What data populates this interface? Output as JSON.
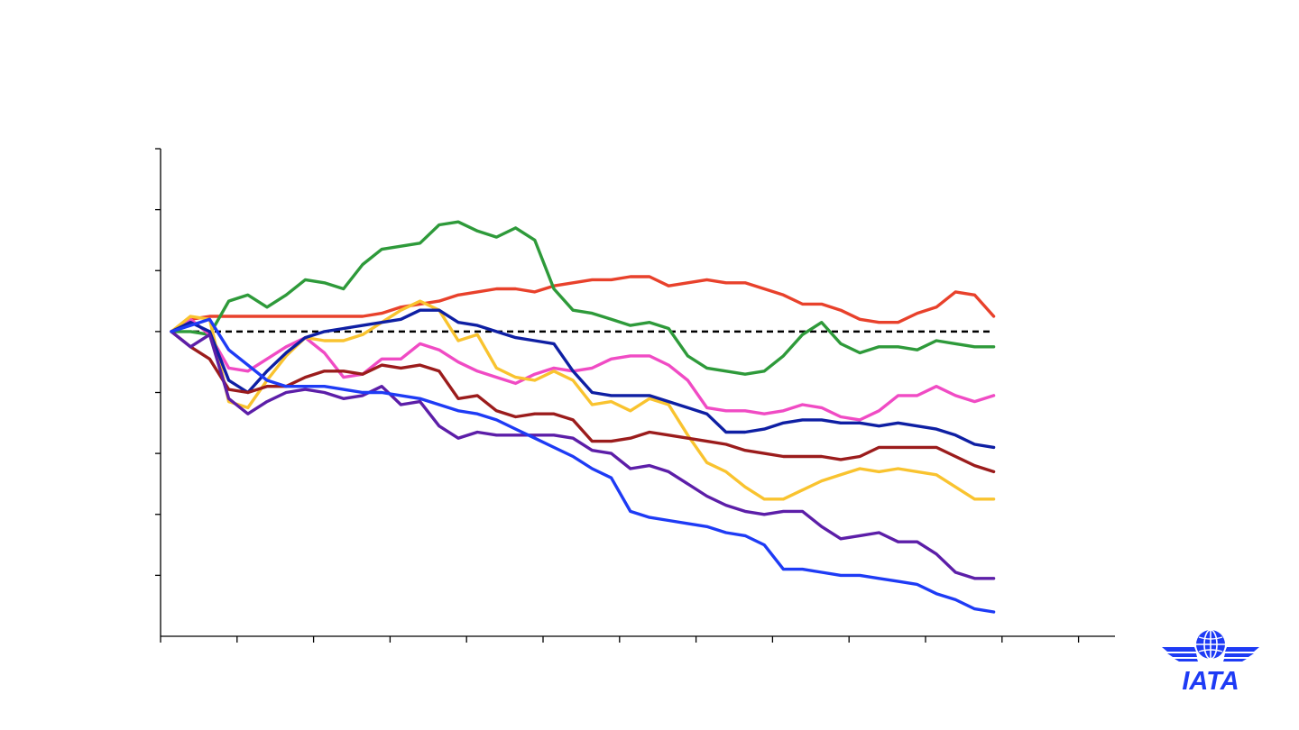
{
  "chart_data": {
    "type": "line",
    "title": "",
    "xlabel": "",
    "ylabel": "",
    "x_tick_count": 13,
    "y_tick_count": 8,
    "xlim": [
      0,
      50
    ],
    "ylim": [
      -100,
      60
    ],
    "reference_line": {
      "value": 0,
      "style": "dashed",
      "color": "#000000"
    },
    "grid": false,
    "legend": "none",
    "x": [
      0,
      1,
      2,
      3,
      4,
      5,
      6,
      7,
      8,
      9,
      10,
      11,
      12,
      13,
      14,
      15,
      16,
      17,
      18,
      19,
      20,
      21,
      22,
      23,
      24,
      25,
      26,
      27,
      28,
      29,
      30,
      31,
      32,
      33,
      34,
      35,
      36,
      37,
      38,
      39,
      40,
      41,
      42,
      43
    ],
    "series": [
      {
        "color": "#e8412b",
        "values": [
          0,
          4,
          5,
          5,
          5,
          5,
          5,
          5,
          5,
          5,
          5,
          6,
          8,
          9,
          10,
          12,
          13,
          14,
          14,
          13,
          15,
          16,
          17,
          17,
          18,
          18,
          15,
          16,
          17,
          16,
          16,
          14,
          12,
          9,
          9,
          7,
          4,
          3,
          3,
          6,
          8,
          13,
          12,
          5
        ]
      },
      {
        "color": "#2e9a3a",
        "values": [
          0,
          0,
          -1,
          10,
          12,
          8,
          12,
          17,
          16,
          14,
          22,
          27,
          28,
          29,
          35,
          36,
          33,
          31,
          34,
          30,
          14,
          7,
          6,
          4,
          2,
          3,
          1,
          -8,
          -12,
          -13,
          -14,
          -13,
          -8,
          -1,
          3,
          -4,
          -7,
          -5,
          -5,
          -6,
          -3,
          -4,
          -5,
          -5
        ]
      },
      {
        "color": "#f04bc4",
        "values": [
          0,
          4,
          -1,
          -12,
          -13,
          -9,
          -5,
          -2,
          -7,
          -15,
          -14,
          -9,
          -9,
          -4,
          -6,
          -10,
          -13,
          -15,
          -17,
          -14,
          -12,
          -13,
          -12,
          -9,
          -8,
          -8,
          -11,
          -16,
          -25,
          -26,
          -26,
          -27,
          -26,
          -24,
          -25,
          -28,
          -29,
          -26,
          -21,
          -21,
          -18,
          -21,
          -23,
          -21
        ]
      },
      {
        "color": "#f9c32f",
        "values": [
          0,
          5,
          4,
          -23,
          -25,
          -16,
          -8,
          -2,
          -3,
          -3,
          -1,
          3,
          7,
          10,
          7,
          -3,
          -1,
          -12,
          -15,
          -16,
          -13,
          -16,
          -24,
          -23,
          -26,
          -22,
          -24,
          -34,
          -43,
          -46,
          -51,
          -55,
          -55,
          -52,
          -49,
          -47,
          -45,
          -46,
          -45,
          -46,
          -47,
          -51,
          -55,
          -55
        ]
      },
      {
        "color": "#0e1fa3",
        "values": [
          0,
          3,
          0,
          -16,
          -20,
          -13,
          -7,
          -2,
          0,
          1,
          2,
          3,
          4,
          7,
          7,
          3,
          2,
          0,
          -2,
          -3,
          -4,
          -13,
          -20,
          -21,
          -21,
          -21,
          -23,
          -25,
          -27,
          -33,
          -33,
          -32,
          -30,
          -29,
          -29,
          -30,
          -30,
          -31,
          -30,
          -31,
          -32,
          -34,
          -37,
          -38
        ]
      },
      {
        "color": "#9b1c1c",
        "values": [
          0,
          -5,
          -9,
          -19,
          -20,
          -18,
          -18,
          -15,
          -13,
          -13,
          -14,
          -11,
          -12,
          -11,
          -13,
          -22,
          -21,
          -26,
          -28,
          -27,
          -27,
          -29,
          -36,
          -36,
          -35,
          -33,
          -34,
          -35,
          -36,
          -37,
          -39,
          -40,
          -41,
          -41,
          -41,
          -42,
          -41,
          -38,
          -38,
          -38,
          -38,
          -41,
          -44,
          -46
        ]
      },
      {
        "color": "#5c1ea8",
        "values": [
          0,
          -5,
          -1,
          -22,
          -27,
          -23,
          -20,
          -19,
          -20,
          -22,
          -21,
          -18,
          -24,
          -23,
          -31,
          -35,
          -33,
          -34,
          -34,
          -34,
          -34,
          -35,
          -39,
          -40,
          -45,
          -44,
          -46,
          -50,
          -54,
          -57,
          -59,
          -60,
          -59,
          -59,
          -64,
          -68,
          -67,
          -66,
          -69,
          -69,
          -73,
          -79,
          -81,
          -81
        ]
      },
      {
        "color": "#1e3bf5",
        "values": [
          0,
          2,
          4,
          -6,
          -11,
          -16,
          -18,
          -18,
          -18,
          -19,
          -20,
          -20,
          -21,
          -22,
          -24,
          -26,
          -27,
          -29,
          -32,
          -35,
          -38,
          -41,
          -45,
          -48,
          -59,
          -61,
          -62,
          -63,
          -64,
          -66,
          -67,
          -70,
          -78,
          -78,
          -79,
          -80,
          -80,
          -81,
          -82,
          -83,
          -86,
          -88,
          -91,
          -92
        ]
      }
    ]
  },
  "logo": {
    "text": "IATA",
    "color": "#1e3bf5"
  }
}
